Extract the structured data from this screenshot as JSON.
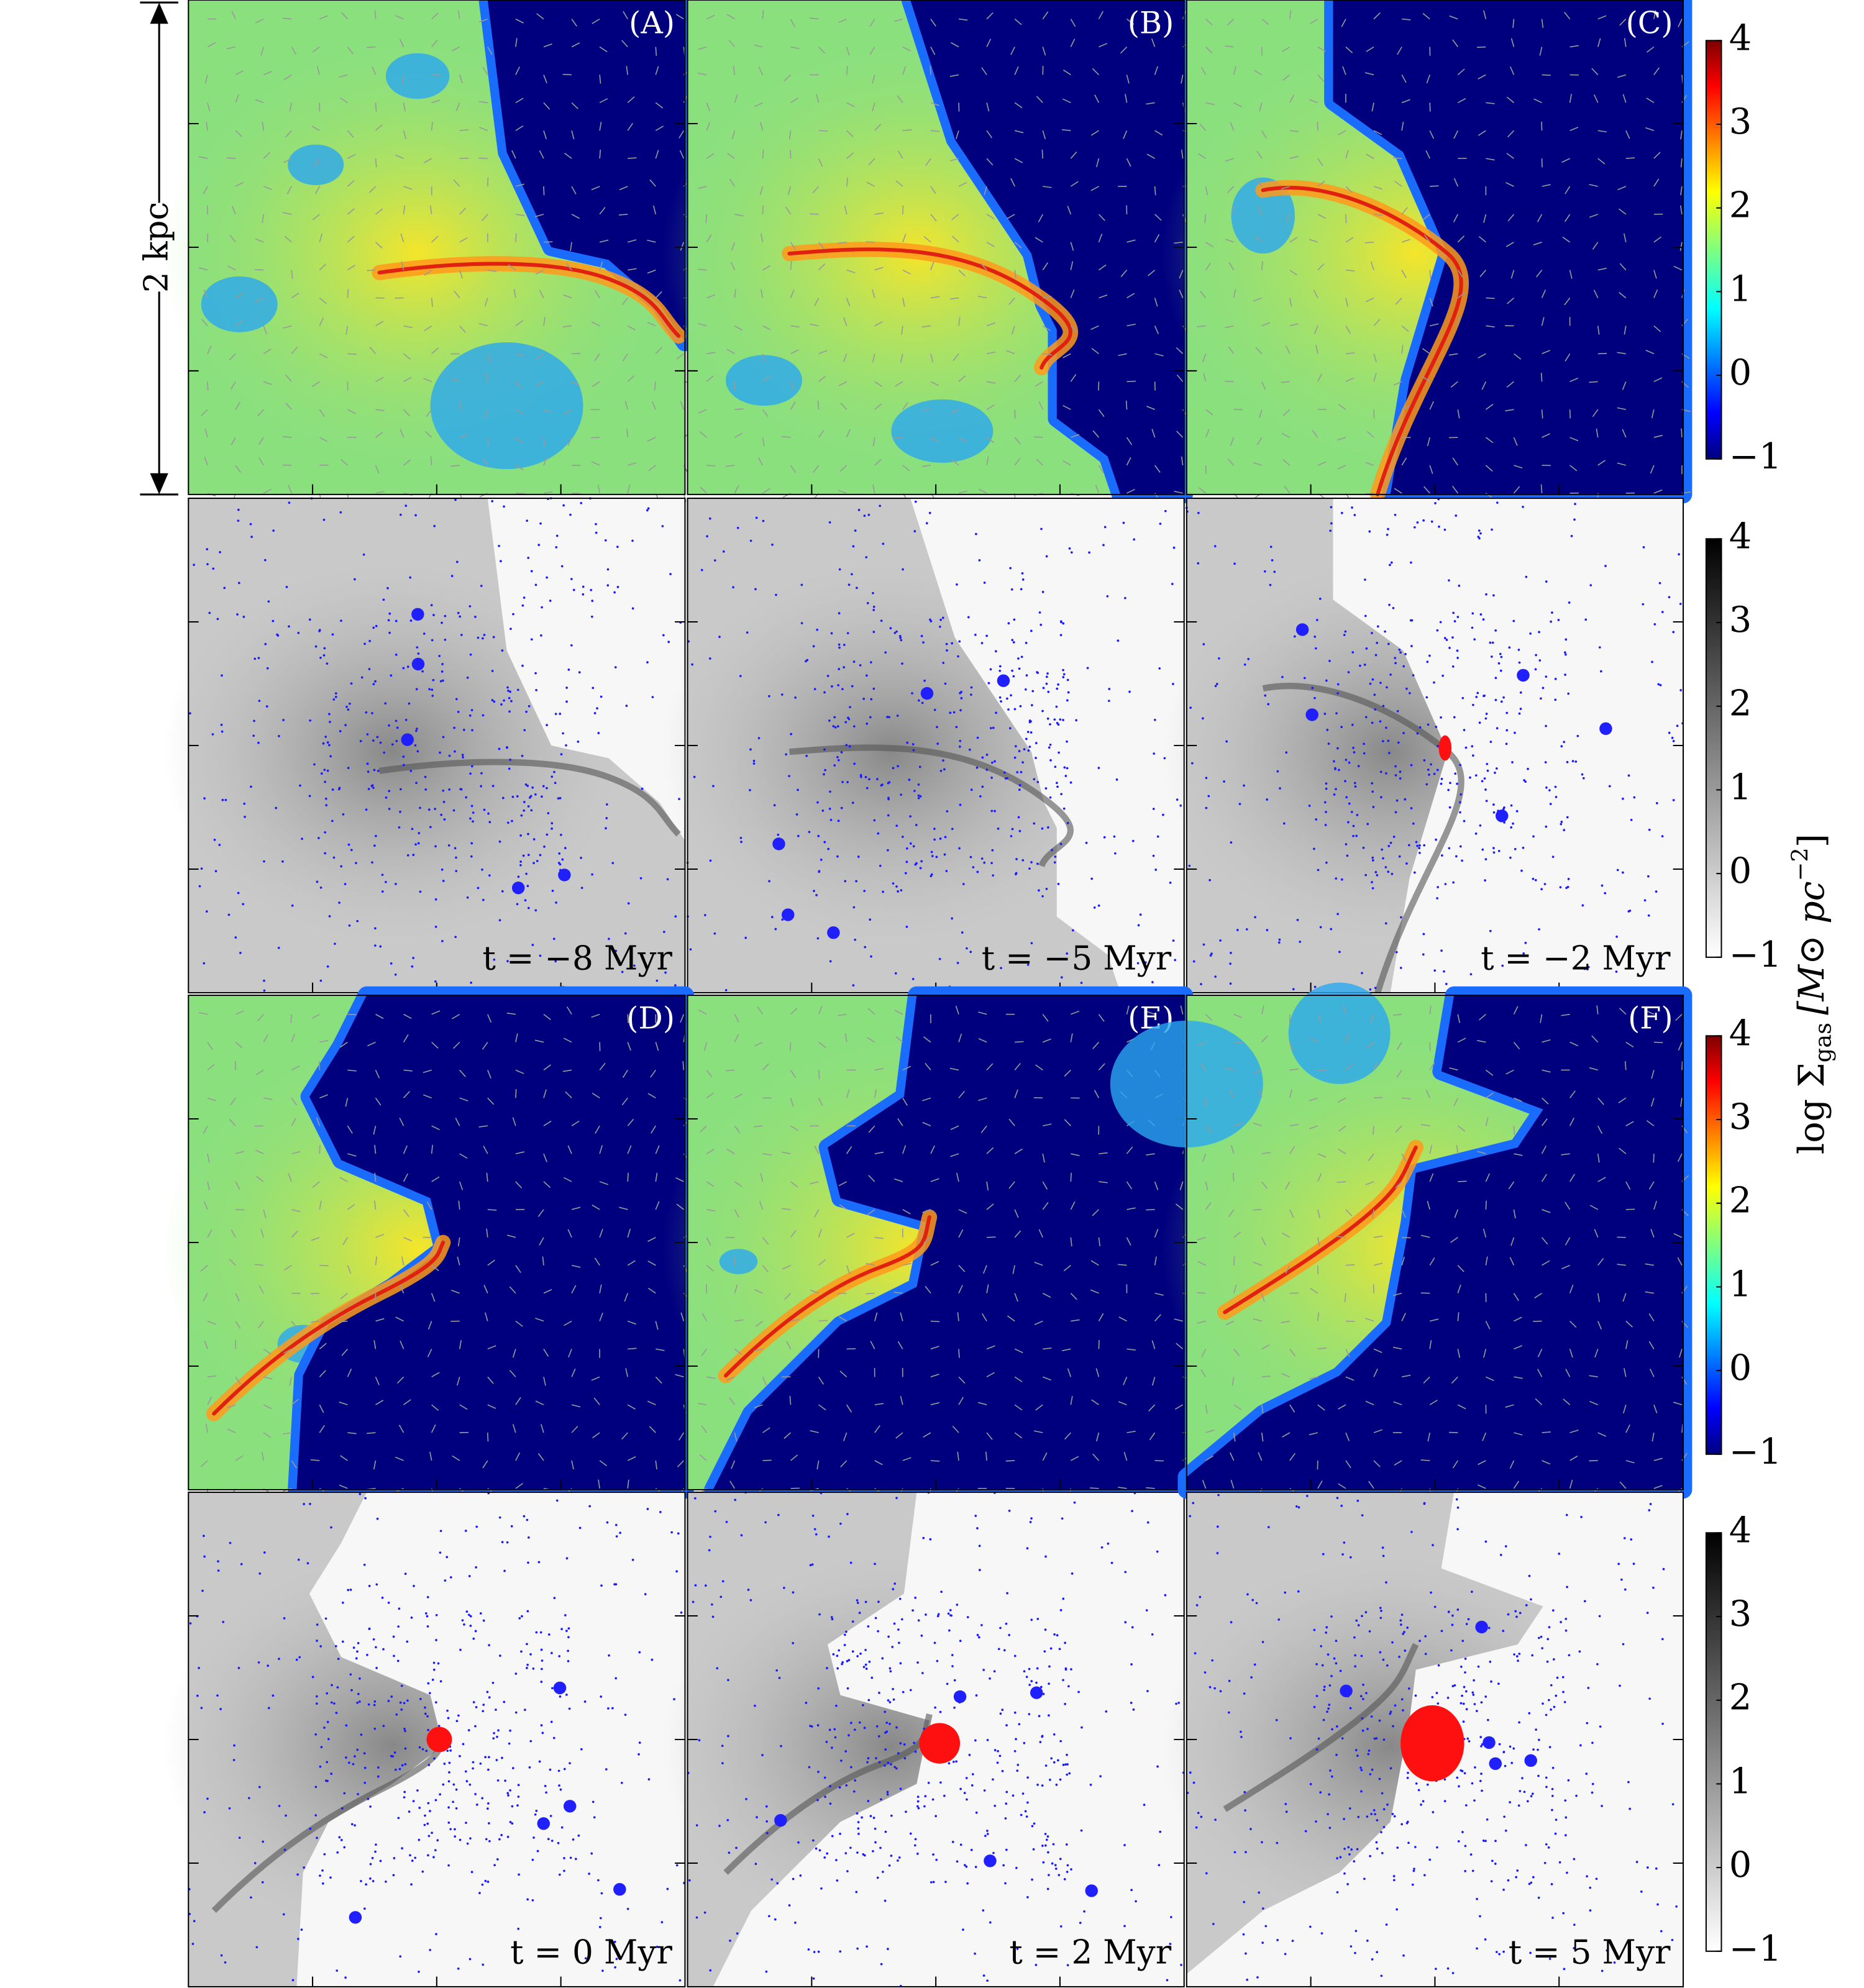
{
  "figure": {
    "scale_bar": "2 kpc",
    "panels": [
      {
        "label": "(A)",
        "time": "t = −8 Myr"
      },
      {
        "label": "(B)",
        "time": "t = −5 Myr"
      },
      {
        "label": "(C)",
        "time": "t = −2 Myr"
      },
      {
        "label": "(D)",
        "time": "t = 0 Myr"
      },
      {
        "label": "(E)",
        "time": "t = 2 Myr"
      },
      {
        "label": "(F)",
        "time": "t = 5 Myr"
      }
    ],
    "colorbars": [
      {
        "colormap": "jet",
        "lim": [
          -1,
          4
        ],
        "ticks": [
          {
            "value": -1,
            "label": "−1"
          },
          0,
          1,
          2,
          3,
          4
        ]
      },
      {
        "colormap": "gray",
        "lim": [
          -1,
          4
        ],
        "ticks": [
          {
            "value": -1,
            "label": "−1"
          },
          0,
          1,
          2,
          3,
          4
        ]
      },
      {
        "colormap": "jet",
        "lim": [
          -1,
          4
        ],
        "ticks": [
          {
            "value": -1,
            "label": "−1"
          },
          0,
          1,
          2,
          3,
          4
        ]
      },
      {
        "colormap": "gray",
        "lim": [
          -1,
          4
        ],
        "ticks": [
          {
            "value": -1,
            "label": "−1"
          },
          0,
          1,
          2,
          3,
          4
        ]
      }
    ],
    "colorbar_label": {
      "main": "log Σ",
      "sub": "gas",
      "unit": "[M⊙ pc",
      "sup": "−2",
      "close": "]"
    }
  }
}
